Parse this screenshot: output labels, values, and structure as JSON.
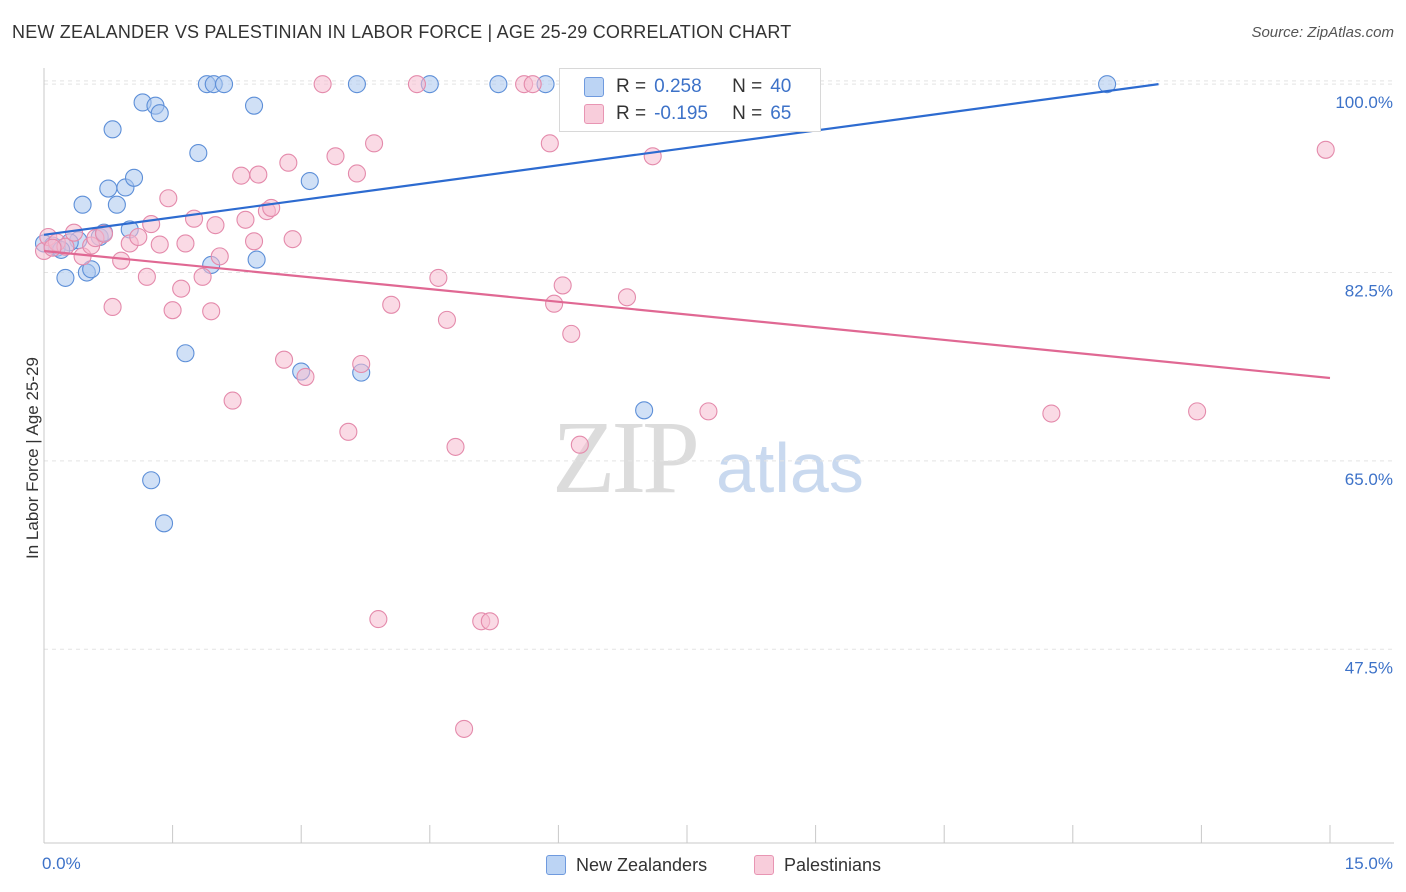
{
  "header": {
    "title": "NEW ZEALANDER VS PALESTINIAN IN LABOR FORCE | AGE 25-29 CORRELATION CHART",
    "source": "Source: ZipAtlas.com"
  },
  "watermark": {
    "zip": "ZIP",
    "atlas": "atlas"
  },
  "legend_top": {
    "nz": {
      "r_label": "R =",
      "r_value": "0.258",
      "n_label": "N =",
      "n_value": "40"
    },
    "pal": {
      "r_label": "R =",
      "r_value": "-0.195",
      "n_label": "N =",
      "n_value": "65"
    }
  },
  "legend_bottom": {
    "nz": "New Zealanders",
    "pal": "Palestinians"
  },
  "colors": {
    "nz_fill": "#a9c7ef",
    "nz_stroke": "#5d8fd8",
    "nz_line": "#2d6bd0",
    "pal_fill": "#f5bcd0",
    "pal_stroke": "#e48aab",
    "pal_line": "#e06893",
    "tick": "#3d72c8",
    "grid": "#e4e4e4"
  },
  "chart_data": {
    "type": "scatter",
    "title": "NEW ZEALANDER VS PALESTINIAN IN LABOR FORCE | AGE 25-29 CORRELATION CHART",
    "xlabel": "",
    "ylabel": "In Labor Force | Age 25-29",
    "xlim": [
      0,
      15
    ],
    "ylim": [
      29.5,
      101.5
    ],
    "x_tick_labels": [
      "0.0%",
      "15.0%"
    ],
    "y_ticks": [
      47.5,
      65.0,
      82.5,
      100.0
    ],
    "y_tick_labels": [
      "47.5%",
      "65.0%",
      "82.5%",
      "100.0%"
    ],
    "series": [
      {
        "name": "New Zealanders",
        "r": 0.258,
        "n": 40,
        "trend": {
          "x": [
            0.0,
            13.0
          ],
          "y": [
            86.0,
            100.0
          ]
        },
        "points": [
          [
            0.0,
            85.2
          ],
          [
            0.15,
            84.8
          ],
          [
            0.25,
            82.0
          ],
          [
            0.4,
            85.5
          ],
          [
            0.45,
            88.8
          ],
          [
            0.5,
            82.5
          ],
          [
            0.55,
            82.8
          ],
          [
            0.65,
            85.8
          ],
          [
            0.7,
            86.2
          ],
          [
            0.75,
            90.3
          ],
          [
            0.8,
            95.8
          ],
          [
            0.85,
            88.8
          ],
          [
            0.95,
            90.4
          ],
          [
            1.0,
            86.5
          ],
          [
            1.05,
            91.3
          ],
          [
            1.15,
            98.3
          ],
          [
            1.3,
            98.0
          ],
          [
            1.35,
            97.3
          ],
          [
            1.65,
            75.0
          ],
          [
            1.8,
            93.6
          ],
          [
            1.9,
            100.0
          ],
          [
            1.95,
            83.2
          ],
          [
            1.98,
            100.0
          ],
          [
            2.1,
            100.0
          ],
          [
            2.45,
            98.0
          ],
          [
            2.48,
            83.7
          ],
          [
            3.0,
            73.3
          ],
          [
            3.1,
            91.0
          ],
          [
            3.7,
            73.2
          ],
          [
            3.65,
            100.0
          ],
          [
            4.5,
            100.0
          ],
          [
            5.3,
            100.0
          ],
          [
            5.85,
            100.0
          ],
          [
            7.0,
            69.7
          ],
          [
            12.4,
            100.0
          ],
          [
            1.25,
            63.2
          ],
          [
            1.4,
            59.2
          ],
          [
            0.1,
            85.0
          ],
          [
            0.3,
            85.3
          ],
          [
            0.2,
            84.6
          ]
        ]
      },
      {
        "name": "Palestinians",
        "r": -0.195,
        "n": 65,
        "trend": {
          "x": [
            0.0,
            15.0
          ],
          "y": [
            84.5,
            72.7
          ]
        },
        "points": [
          [
            0.0,
            84.5
          ],
          [
            0.05,
            85.8
          ],
          [
            0.15,
            85.3
          ],
          [
            0.25,
            84.9
          ],
          [
            0.35,
            86.2
          ],
          [
            0.45,
            84.0
          ],
          [
            0.55,
            85.0
          ],
          [
            0.6,
            85.7
          ],
          [
            0.7,
            86.1
          ],
          [
            0.8,
            79.3
          ],
          [
            0.9,
            83.6
          ],
          [
            1.0,
            85.2
          ],
          [
            1.1,
            85.8
          ],
          [
            1.2,
            82.1
          ],
          [
            1.25,
            87.0
          ],
          [
            1.35,
            85.1
          ],
          [
            1.45,
            89.4
          ],
          [
            1.5,
            79.0
          ],
          [
            1.6,
            81.0
          ],
          [
            1.65,
            85.2
          ],
          [
            1.75,
            87.5
          ],
          [
            1.85,
            82.1
          ],
          [
            1.95,
            78.9
          ],
          [
            2.0,
            86.9
          ],
          [
            2.05,
            84.0
          ],
          [
            2.2,
            70.6
          ],
          [
            2.3,
            91.5
          ],
          [
            2.35,
            87.4
          ],
          [
            2.45,
            85.4
          ],
          [
            2.5,
            91.6
          ],
          [
            2.6,
            88.2
          ],
          [
            2.65,
            88.5
          ],
          [
            2.8,
            74.4
          ],
          [
            2.85,
            92.7
          ],
          [
            2.9,
            85.6
          ],
          [
            3.05,
            72.8
          ],
          [
            3.25,
            100.0
          ],
          [
            3.4,
            93.3
          ],
          [
            3.55,
            67.7
          ],
          [
            3.65,
            91.7
          ],
          [
            3.7,
            74.0
          ],
          [
            3.85,
            94.5
          ],
          [
            3.9,
            50.3
          ],
          [
            4.05,
            79.5
          ],
          [
            4.35,
            100.0
          ],
          [
            4.6,
            82.0
          ],
          [
            4.7,
            78.1
          ],
          [
            4.8,
            66.3
          ],
          [
            4.9,
            40.1
          ],
          [
            5.1,
            50.1
          ],
          [
            5.2,
            50.1
          ],
          [
            5.6,
            100.0
          ],
          [
            5.7,
            100.0
          ],
          [
            5.9,
            94.5
          ],
          [
            5.95,
            79.6
          ],
          [
            6.05,
            81.3
          ],
          [
            6.15,
            76.8
          ],
          [
            6.25,
            66.5
          ],
          [
            6.8,
            80.2
          ],
          [
            7.1,
            93.3
          ],
          [
            7.75,
            69.6
          ],
          [
            11.75,
            69.4
          ],
          [
            13.45,
            69.6
          ],
          [
            14.95,
            93.9
          ],
          [
            0.1,
            84.8
          ]
        ]
      }
    ]
  }
}
